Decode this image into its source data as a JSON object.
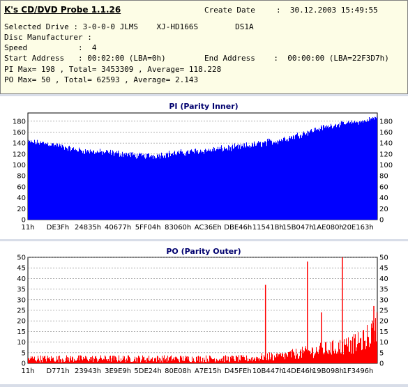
{
  "header": {
    "app_title": "K's CD/DVD Probe 1.1.26",
    "create_date_label": "Create Date",
    "create_date_value": ":  30.12.2003 15:49:55",
    "selected_drive_line": "Selected Drive : 3-0-0-0 JLMS    XJ-HD166S        DS1A",
    "disc_manufacturer_line": "Disc Manufacturer :",
    "speed_line": "Speed           :  4",
    "start_address_line": "Start Address   : 00:02:00 (LBA=0h)",
    "end_address_line": "End Address    :  00:00:00 (LBA=22F3D7h)",
    "pi_line": "PI Max= 198 , Total= 3453309 , Average= 118.228",
    "po_line": "PO Max= 50 , Total= 62593 , Average= 2.143"
  },
  "chart_data": [
    {
      "type": "area",
      "title": "PI (Parity Inner)",
      "ylim": [
        0,
        195
      ],
      "yticks": [
        "0",
        "20",
        "40",
        "60",
        "80",
        "100",
        "120",
        "140",
        "160",
        "180"
      ],
      "xticks": [
        "11h",
        "DE3Fh",
        "24835h",
        "40677h",
        "5FF04h",
        "83060h",
        "AC36Eh",
        "DBE46h",
        "11541Bh",
        "15B047h",
        "1AE080h",
        "20E163h"
      ],
      "grid": true,
      "color": "#0000ff",
      "x": [
        0,
        4,
        8,
        12,
        16,
        20,
        24,
        28,
        32,
        36,
        40,
        44,
        48,
        52,
        56,
        60,
        64,
        68,
        72,
        76,
        80,
        84,
        88,
        92,
        96,
        100
      ],
      "values": [
        140,
        139,
        135,
        128,
        124,
        122,
        120,
        118,
        115,
        115,
        118,
        120,
        123,
        125,
        128,
        130,
        134,
        138,
        143,
        150,
        158,
        166,
        172,
        176,
        178,
        186
      ],
      "maxima": [
        155,
        150,
        148,
        142,
        138,
        136,
        138,
        135,
        130,
        132,
        135,
        138,
        140,
        142,
        145,
        148,
        152,
        158,
        163,
        168,
        175,
        180,
        183,
        185,
        188,
        198
      ]
    },
    {
      "type": "area",
      "title": "PO (Parity Outer)",
      "ylim": [
        0,
        50
      ],
      "yticks": [
        "0",
        "5",
        "10",
        "15",
        "20",
        "25",
        "30",
        "35",
        "40",
        "45",
        "50"
      ],
      "xticks": [
        "11h",
        "D771h",
        "23943h",
        "3E9E9h",
        "5DE24h",
        "80E08h",
        "A7E15h",
        "D45FEh",
        "10B447h",
        "14DE46h",
        "19B098h",
        "1F3496h"
      ],
      "grid": true,
      "color": "#ff0000",
      "x": [
        0,
        4,
        8,
        12,
        16,
        20,
        24,
        28,
        32,
        36,
        40,
        44,
        48,
        52,
        56,
        60,
        64,
        68,
        72,
        76,
        80,
        84,
        88,
        92,
        96,
        100
      ],
      "values": [
        2,
        2,
        2,
        2,
        2,
        2,
        2,
        2,
        2,
        2,
        2,
        2,
        2,
        2,
        2,
        2,
        2,
        3,
        3,
        4,
        5,
        6,
        7,
        8,
        10,
        16
      ],
      "spikes": [
        {
          "x": 68,
          "value": 37
        },
        {
          "x": 80,
          "value": 48
        },
        {
          "x": 84,
          "value": 24
        },
        {
          "x": 90,
          "value": 50
        },
        {
          "x": 99,
          "value": 27
        }
      ]
    }
  ]
}
